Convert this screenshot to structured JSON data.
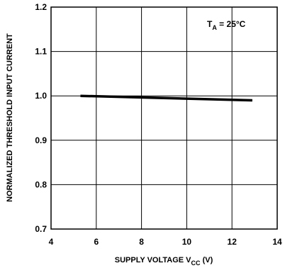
{
  "chart_data": {
    "type": "line",
    "x_axis": {
      "label_main": "SUPPLY VOLTAGE V",
      "label_sub": "CC",
      "label_suffix": " (V)",
      "range": [
        4,
        14
      ],
      "ticks": [
        4,
        6,
        8,
        10,
        12,
        14
      ],
      "tick_labels": [
        "4",
        "6",
        "8",
        "10",
        "12",
        "14"
      ]
    },
    "y_axis": {
      "label": "NORMALIZED THRESHOLD INPUT CURRENT",
      "range": [
        0.7,
        1.2
      ],
      "ticks": [
        0.7,
        0.8,
        0.9,
        1.0,
        1.1,
        1.2
      ],
      "tick_labels": [
        "0.7",
        "0.8",
        "0.9",
        "1.0",
        "1.1",
        "1.2"
      ]
    },
    "grid": true,
    "annotation": {
      "main": "T",
      "sub": "A",
      "suffix": " = 25°C"
    },
    "series": [
      {
        "x": [
          5.3,
          12.9
        ],
        "y": [
          1.0,
          0.99
        ]
      }
    ]
  }
}
